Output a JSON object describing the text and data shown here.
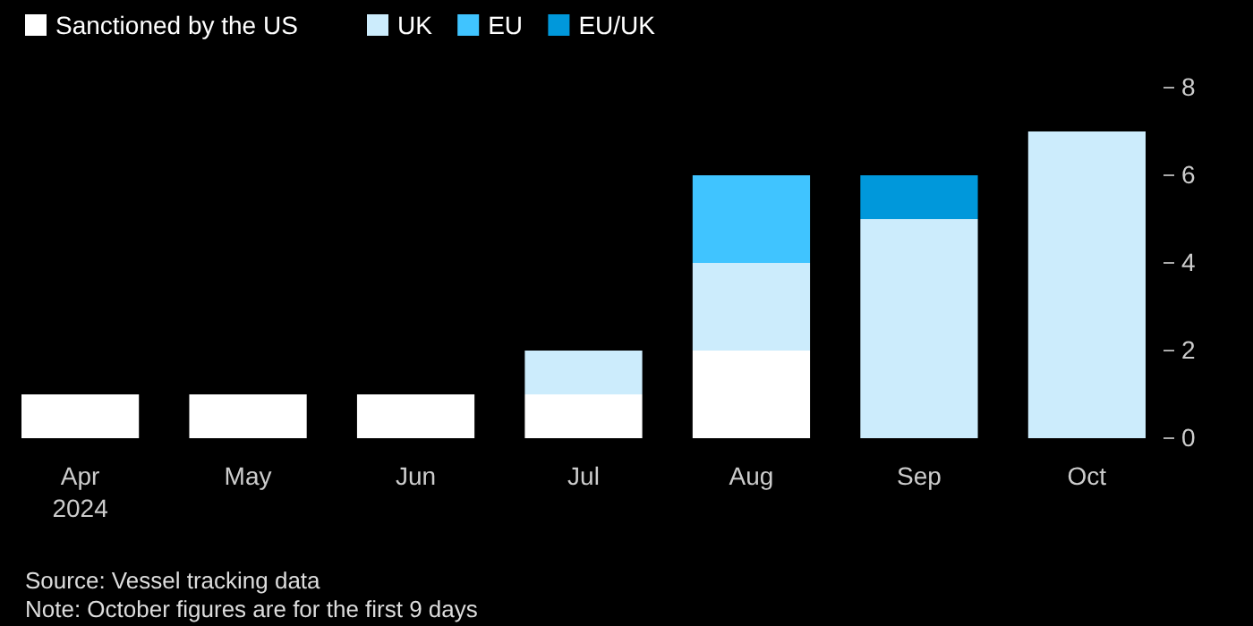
{
  "chart_data": {
    "type": "bar",
    "stacked": true,
    "categories": [
      "Apr\n2024",
      "May",
      "Jun",
      "Jul",
      "Aug",
      "Sep",
      "Oct"
    ],
    "series": [
      {
        "name": "Sanctioned by the US",
        "color": "#ffffff",
        "values": [
          1,
          1,
          1,
          1,
          2,
          0,
          0
        ]
      },
      {
        "name": "UK",
        "color": "#ccecfc",
        "values": [
          0,
          0,
          0,
          1,
          2,
          5,
          7
        ]
      },
      {
        "name": "EU",
        "color": "#40c4ff",
        "values": [
          0,
          0,
          0,
          0,
          2,
          0,
          0
        ]
      },
      {
        "name": "EU/UK",
        "color": "#0098db",
        "values": [
          0,
          0,
          0,
          0,
          0,
          1,
          0
        ]
      }
    ],
    "ylim": [
      0,
      8
    ],
    "yticks": [
      0,
      2,
      4,
      6,
      8
    ],
    "legend": "top left",
    "annotations": [
      "Source: Vessel tracking data",
      "Note: October figures are for the first 9 days"
    ]
  }
}
